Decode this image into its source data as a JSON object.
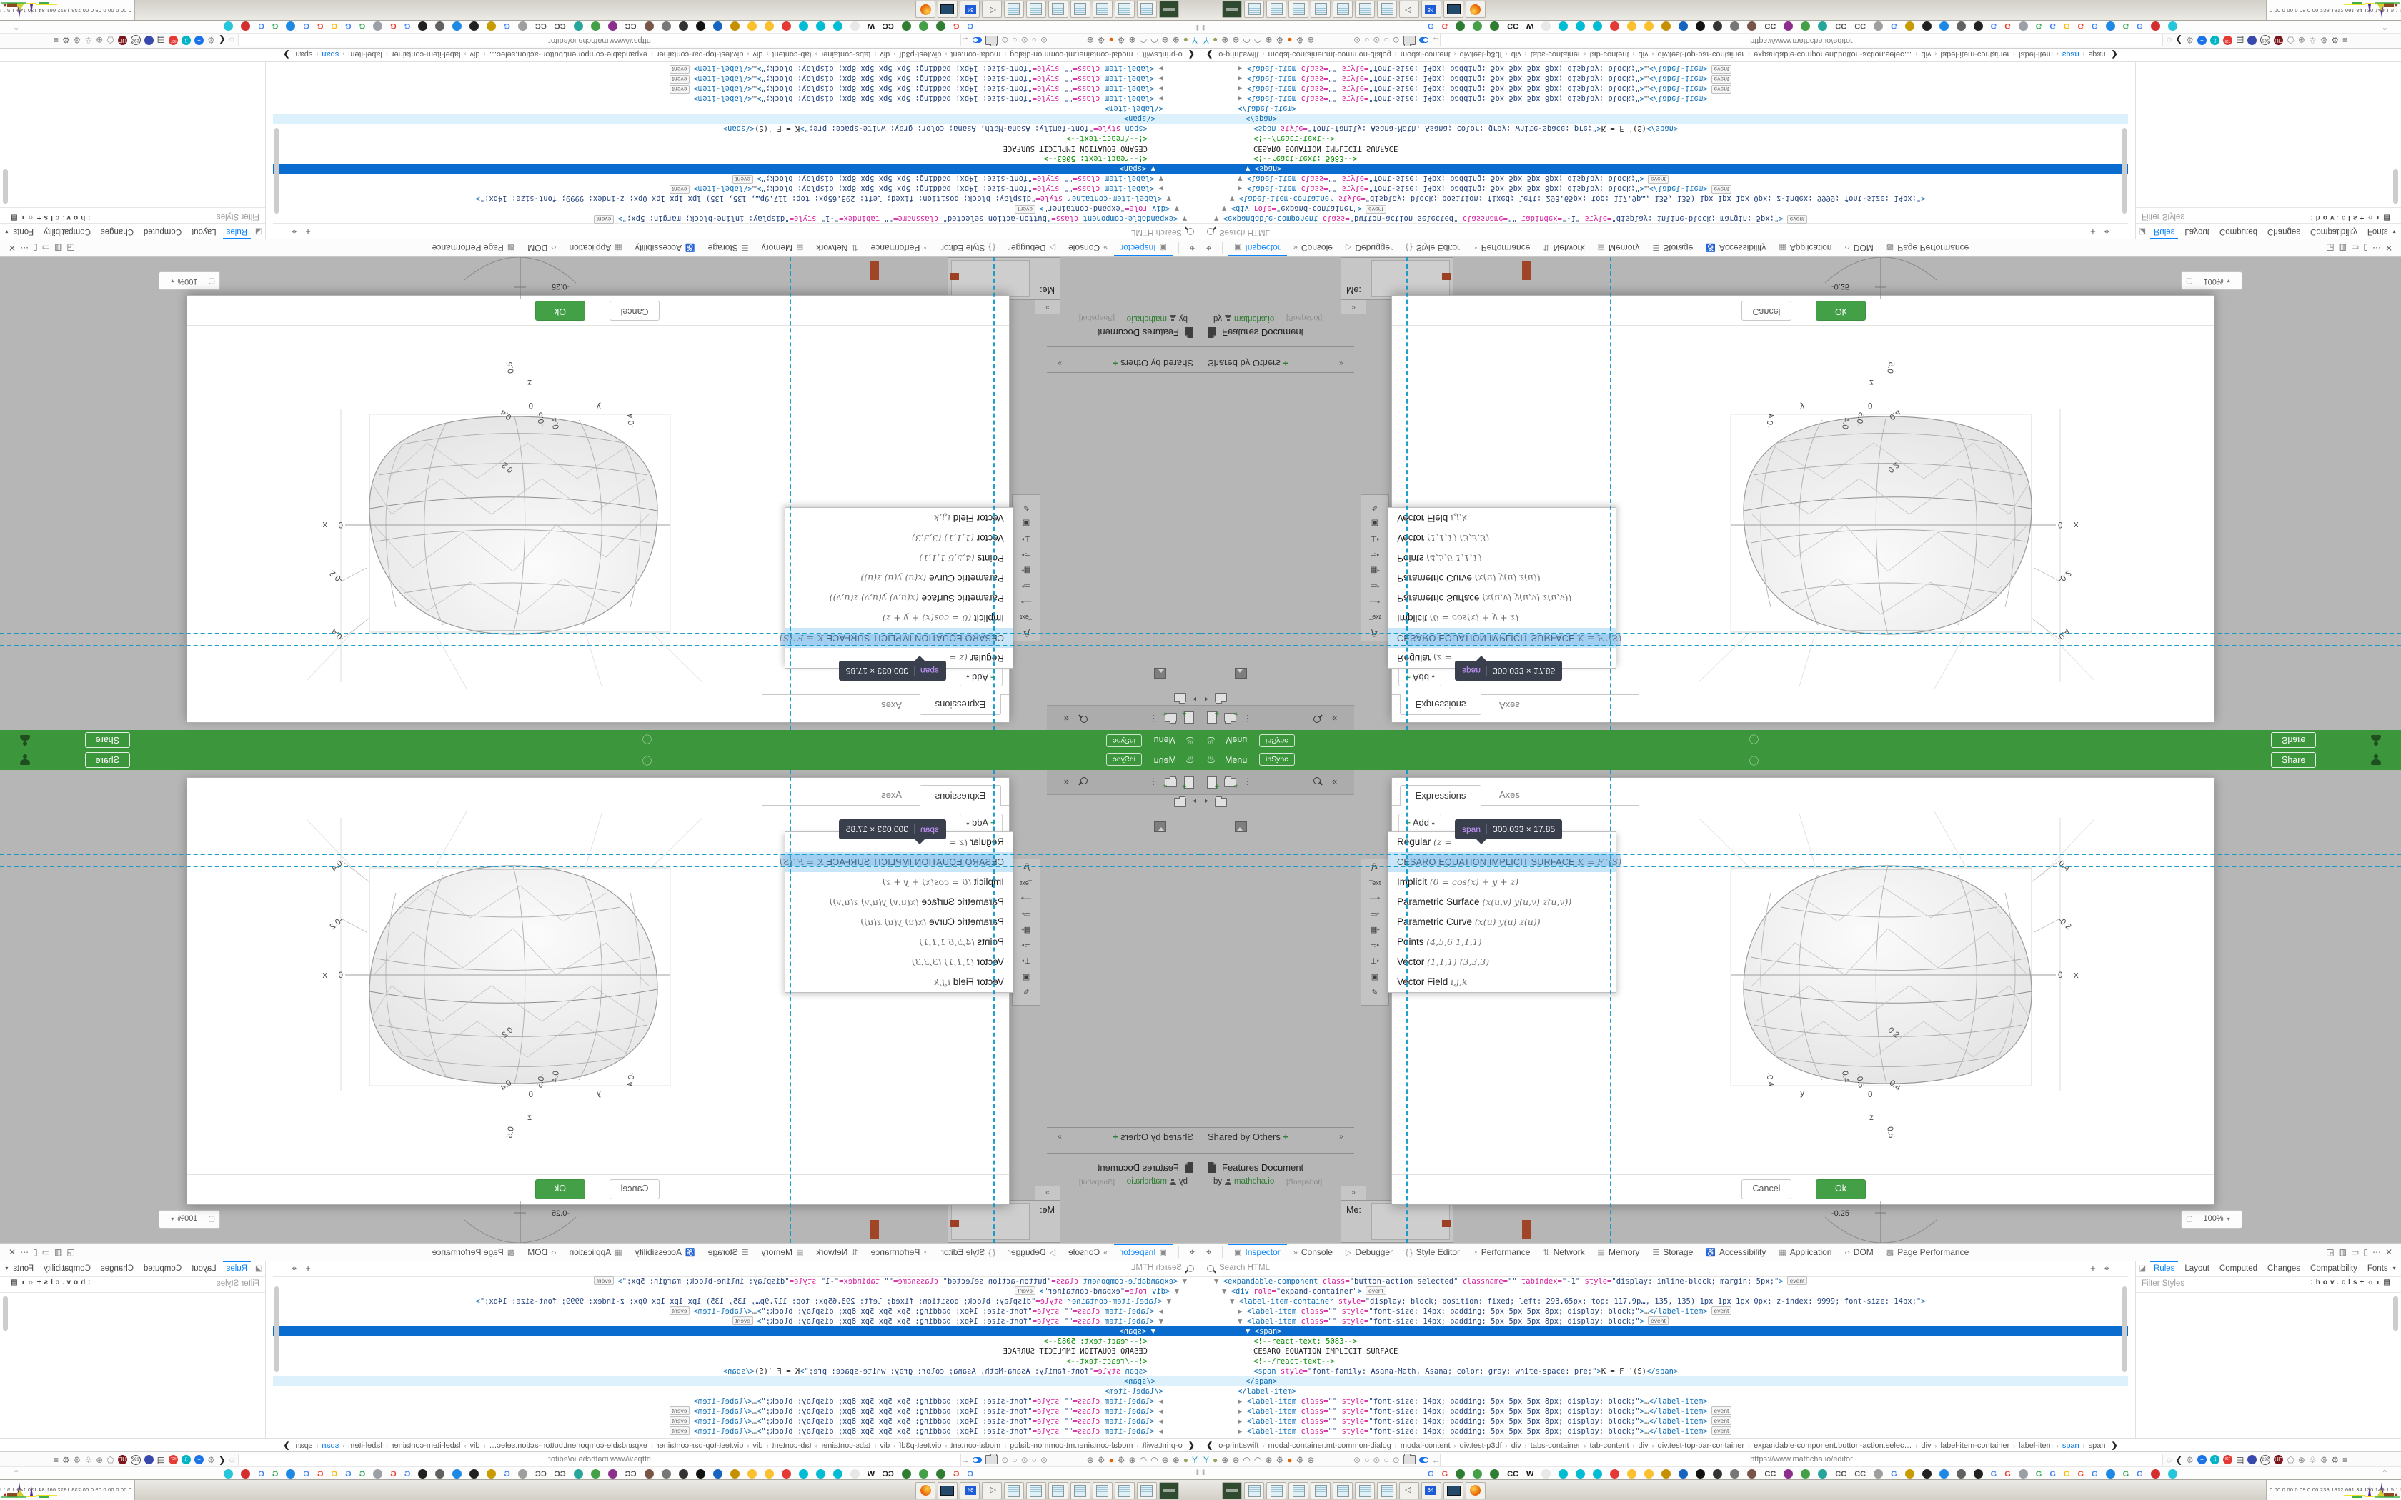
{
  "colors": {
    "accent_green": "#3c973c",
    "ok_green": "#43a047",
    "select_blue": "#0a6cce",
    "overlay_teal": "#0896c8",
    "link_green": "#2e7d32"
  },
  "navbar": {
    "logo_icon": "cup-icon",
    "menu": "Menu",
    "sync_badge": "inSync",
    "info_icon": "i",
    "share": "Share"
  },
  "sidebar": {
    "shared_header": "Shared by Others",
    "shared_plus": "+",
    "collapse": "»",
    "doc_title": "Features Document",
    "doc_by": "by",
    "doc_author": "mathcha.io",
    "doc_badge": "[Snapshot]",
    "me_label": "Me:"
  },
  "tool_strip": [
    "fx",
    "Text",
    "—",
    "▭",
    "▦",
    "⇨",
    "⊥",
    "▣",
    "✎"
  ],
  "modal": {
    "tab_active": "Expressions",
    "tab_inactive": "Axes",
    "add_plus": "+",
    "add_label": "Add",
    "add_caret": "▾",
    "menu_items": [
      {
        "name": "Regular",
        "formula": "(z ="
      },
      {
        "name": "CESARO EQUATION IMPLICIT SURFACE",
        "formula": "K = F ′(S)",
        "selected": true
      },
      {
        "name": "Implicit",
        "formula": "(0 = cos(x) + y + z)"
      },
      {
        "name": "Parametric Surface",
        "formula": "(x(u,v) y(u,v) z(u,v))"
      },
      {
        "name": "Parametric Curve",
        "formula": "(x(u) y(u) z(u))"
      },
      {
        "name": "Points",
        "formula": "(4,5,6 1,1,1)"
      },
      {
        "name": "Vector",
        "formula": "(1,1,1) (3,3,3)"
      },
      {
        "name": "Vector Field",
        "formula": "i,j,k"
      }
    ],
    "cancel": "Cancel",
    "ok": "Ok"
  },
  "tooltip": {
    "tag": "span",
    "dims": "300.033 × 17.85"
  },
  "plot": {
    "x_ticks": [
      "-0.4",
      "-0.2",
      "0"
    ],
    "x_label": "x",
    "y_ticks": [
      "-0.4",
      "0.4"
    ],
    "y_label": "y",
    "z_ticks": [
      "-0.5",
      "0",
      "0.5",
      "0.2",
      "0.4"
    ],
    "z_label": "z"
  },
  "page_fragment": {
    "tick": "-0.25",
    "zoom_level": "100%",
    "zoom_caret": "▾",
    "fullscreen_icon": "▢"
  },
  "devtools": {
    "tabs": [
      {
        "icon": "▣",
        "label": "Inspector",
        "on": true
      },
      {
        "icon": "»",
        "label": "Console"
      },
      {
        "icon": "▷",
        "label": "Debugger"
      },
      {
        "icon": "{ }",
        "label": "Style Editor"
      },
      {
        "icon": "◔",
        "label": "Performance"
      },
      {
        "icon": "⇅",
        "label": "Network"
      },
      {
        "icon": "▤",
        "label": "Memory"
      },
      {
        "icon": "☰",
        "label": "Storage"
      },
      {
        "icon": "♿",
        "label": "Accessibility"
      },
      {
        "icon": "▦",
        "label": "Application"
      },
      {
        "icon": "‹›",
        "label": "DOM"
      },
      {
        "icon": "▩",
        "label": "Page Performance"
      }
    ],
    "right_icons": [
      "◲",
      "▥",
      "▭",
      "▯",
      "⋯",
      "✕"
    ],
    "pick_icon": "⌖",
    "search_placeholder": "Search HTML",
    "row2_icons": [
      "+",
      "⌖"
    ],
    "html_lines": [
      {
        "i": 1,
        "tok": [
          [
            "a",
            "▼ "
          ],
          [
            "t",
            "<expandable-component"
          ],
          [
            "n",
            " class="
          ],
          [
            "q",
            "\"button-action selected\""
          ],
          [
            "n",
            " classname="
          ],
          [
            "q",
            "\"\""
          ],
          [
            "n",
            " tabindex="
          ],
          [
            "q",
            "\"-1\""
          ],
          [
            "n",
            " style="
          ],
          [
            "q",
            "\"display: inline-block; margin: 5px;\""
          ],
          [
            "t",
            ">"
          ],
          [
            "e",
            "event"
          ]
        ]
      },
      {
        "i": 2,
        "tok": [
          [
            "a",
            "▼ "
          ],
          [
            "t",
            "<div"
          ],
          [
            "n",
            " role="
          ],
          [
            "q",
            "\"expand-container\""
          ],
          [
            "t",
            ">"
          ],
          [
            "e",
            "event"
          ]
        ]
      },
      {
        "i": 3,
        "tok": [
          [
            "a",
            "▼ "
          ],
          [
            "t",
            "<label-item-container"
          ],
          [
            "n",
            " style="
          ],
          [
            "q",
            "\"display: block; position: fixed; left: 293.65px; top: 117.9p…, 135, 135) 1px 1px 1px 0px; z-index: 9999; font-size: 14px;\""
          ],
          [
            "t",
            ">"
          ]
        ]
      },
      {
        "i": 4,
        "tok": [
          [
            "a",
            "▶ "
          ],
          [
            "t",
            "<label-item"
          ],
          [
            "n",
            " class="
          ],
          [
            "q",
            "\"\""
          ],
          [
            "n",
            " style="
          ],
          [
            "q",
            "\"font-size: 14px; padding: 5px 5px 5px 8px; display: block;\""
          ],
          [
            "t",
            ">"
          ],
          [
            "d",
            "…"
          ],
          [
            "t",
            "</label-item>"
          ],
          [
            "e",
            "event"
          ]
        ]
      },
      {
        "i": 4,
        "tok": [
          [
            "a",
            "▼ "
          ],
          [
            "t",
            "<label-item"
          ],
          [
            "n",
            " class="
          ],
          [
            "q",
            "\"\""
          ],
          [
            "n",
            " style="
          ],
          [
            "q",
            "\"font-size: 14px; padding: 5px 5px 5px 8px; display: block;\""
          ],
          [
            "t",
            ">"
          ],
          [
            "e",
            "event"
          ]
        ]
      },
      {
        "i": 5,
        "sel": true,
        "tok": [
          [
            "a",
            "▼ "
          ],
          [
            "t",
            "<span>"
          ]
        ]
      },
      {
        "i": 6,
        "tok": [
          [
            "c",
            "<!--react-text: 5083-->"
          ]
        ]
      },
      {
        "i": 6,
        "tok": [
          [
            "x",
            "CESARO EQUATION IMPLICIT SURFACE"
          ]
        ]
      },
      {
        "i": 6,
        "tok": [
          [
            "c",
            "<!--/react-text-->"
          ]
        ]
      },
      {
        "i": 6,
        "tok": [
          [
            "t",
            "<span"
          ],
          [
            "n",
            " style="
          ],
          [
            "q",
            "\"font-family: Asana-Math, Asana; color: gray; white-space: pre;\""
          ],
          [
            "t",
            ">"
          ],
          [
            "x",
            "K = F ′(S)"
          ],
          [
            "t",
            "</span>"
          ]
        ]
      },
      {
        "i": 5,
        "hov": true,
        "tok": [
          [
            "t",
            "</span>"
          ]
        ]
      },
      {
        "i": 4,
        "tok": [
          [
            "t",
            "</label-item>"
          ]
        ]
      },
      {
        "i": 4,
        "tok": [
          [
            "a",
            "▶ "
          ],
          [
            "t",
            "<label-item"
          ],
          [
            "n",
            " class="
          ],
          [
            "q",
            "\"\""
          ],
          [
            "n",
            " style="
          ],
          [
            "q",
            "\"font-size: 14px; padding: 5px 5px 5px 8px; display: block;\""
          ],
          [
            "t",
            ">"
          ],
          [
            "d",
            "…"
          ],
          [
            "t",
            "</label-item>"
          ]
        ]
      },
      {
        "i": 4,
        "tok": [
          [
            "a",
            "▶ "
          ],
          [
            "t",
            "<label-item"
          ],
          [
            "n",
            " class="
          ],
          [
            "q",
            "\"\""
          ],
          [
            "n",
            " style="
          ],
          [
            "q",
            "\"font-size: 14px; padding: 5px 5px 5px 8px; display: block;\""
          ],
          [
            "t",
            ">"
          ],
          [
            "d",
            "…"
          ],
          [
            "t",
            "</label-item>"
          ],
          [
            "e",
            "event"
          ]
        ]
      },
      {
        "i": 4,
        "tok": [
          [
            "a",
            "▶ "
          ],
          [
            "t",
            "<label-item"
          ],
          [
            "n",
            " class="
          ],
          [
            "q",
            "\"\""
          ],
          [
            "n",
            " style="
          ],
          [
            "q",
            "\"font-size: 14px; padding: 5px 5px 5px 8px; display: block;\""
          ],
          [
            "t",
            ">"
          ],
          [
            "d",
            "…"
          ],
          [
            "t",
            "</label-item>"
          ],
          [
            "e",
            "event"
          ]
        ]
      },
      {
        "i": 4,
        "tok": [
          [
            "a",
            "▶ "
          ],
          [
            "t",
            "<label-item"
          ],
          [
            "n",
            " class="
          ],
          [
            "q",
            "\"\""
          ],
          [
            "n",
            " style="
          ],
          [
            "q",
            "\"font-size: 14px; padding: 5px 5px 5px 8px; display: block;\""
          ],
          [
            "t",
            ">"
          ],
          [
            "d",
            "…"
          ],
          [
            "t",
            "</label-item>"
          ],
          [
            "e",
            "event"
          ]
        ]
      }
    ],
    "rules_tabs": [
      {
        "label": "Rules",
        "on": true
      },
      {
        "label": "Layout"
      },
      {
        "label": "Computed"
      },
      {
        "label": "Changes"
      },
      {
        "label": "Compatibility"
      },
      {
        "label": "Fonts"
      }
    ],
    "rules_side_icon": "◪",
    "rules_caret": "▾",
    "filter_placeholder": "Filter Styles",
    "filter_icons": [
      ":hov",
      ".cls",
      "+",
      "☼",
      "◐",
      "▤"
    ],
    "breadcrumbs": [
      "o-print.swift",
      "modal-container.mt-common-dialog",
      "modal-content",
      "div.test-p3df",
      "div",
      "tabs-container",
      "tab-content",
      "div",
      "div.test-top-bar-container",
      "expandable-component.button-action.selec…",
      "div",
      "label-item-container",
      "label-item",
      "span",
      "span"
    ],
    "breadcrumb_selected_index": 13,
    "crumb_left": "❮",
    "crumb_right": "❯"
  },
  "browser": {
    "url": "https://www.mathcha.io/editor",
    "nav_left_icons": [
      {
        "g": "Y",
        "c": "#18a0c4"
      },
      {
        "g": "●",
        "c": "#93a25c"
      },
      {
        "g": "⊕",
        "c": "#777"
      },
      {
        "g": "⊕",
        "c": "#777"
      },
      {
        "g": "◠",
        "c": "#777"
      },
      {
        "g": "◠",
        "c": "#777"
      },
      {
        "g": "⊕",
        "c": "#777"
      },
      {
        "g": "⚙",
        "c": "#777"
      },
      {
        "g": "●",
        "c": "#e66000"
      },
      {
        "g": "⚙",
        "c": "#777"
      },
      {
        "g": "⊕",
        "c": "#777"
      }
    ],
    "nav_mid_icons": [
      {
        "g": "⊙",
        "c": "#999"
      },
      {
        "g": "○",
        "c": "#999"
      },
      {
        "g": "⊙",
        "c": "#999"
      },
      {
        "g": "○",
        "c": "#999"
      },
      {
        "g": "⊙",
        "c": "#999"
      },
      {
        "t": "folder"
      },
      {
        "t": "pill"
      },
      {
        "g": "←",
        "c": "#8a8a8a"
      },
      {
        "g": "⬠",
        "c": "#999"
      },
      {
        "t": "lock"
      }
    ],
    "nav_right_icons": [
      {
        "g": "◌",
        "c": "#888"
      },
      {
        "g": "❮",
        "c": "#222"
      },
      {
        "g": "⚙",
        "c": "#999"
      },
      {
        "t": "dot",
        "c": "#1a73e8",
        "tx": "+"
      },
      {
        "t": "dot",
        "c": "#00b3c6",
        "tx": "⇩"
      },
      {
        "t": "dot",
        "c": "#e53935",
        "tx": "ICF"
      },
      {
        "g": "▤",
        "c": "#333"
      },
      {
        "t": "dot",
        "c": "#3949ab",
        "tx": ""
      },
      {
        "t": "ring",
        "tx": "292"
      },
      {
        "t": "dot",
        "c": "#7b1518",
        "tx": "UD"
      },
      {
        "g": "⬠",
        "c": "#999"
      },
      {
        "g": "⊕",
        "c": "#888"
      },
      {
        "g": "♧",
        "c": "#777"
      },
      {
        "g": "⚙",
        "c": "#888"
      },
      {
        "g": "⚙",
        "c": "#666"
      },
      {
        "g": "≡",
        "c": "#444"
      }
    ],
    "bookmarks": [
      {
        "t": "txt",
        "tx": "G",
        "c": "#4285f4"
      },
      {
        "t": "txt",
        "tx": "G",
        "c": "#ea4335"
      },
      {
        "t": "dot",
        "c": "#2e7d32"
      },
      {
        "t": "dot",
        "c": "#43a047"
      },
      {
        "t": "dot",
        "c": "#2e7d32"
      },
      {
        "t": "txt",
        "tx": "CC",
        "c": "#222"
      },
      {
        "t": "txt",
        "tx": "W",
        "c": "#111"
      },
      {
        "t": "dot",
        "c": "#e8e8e8"
      },
      {
        "t": "dot",
        "c": "#00bcd4"
      },
      {
        "t": "dot",
        "c": "#00bcd4"
      },
      {
        "t": "dot",
        "c": "#00bcd4"
      },
      {
        "t": "dot",
        "c": "#e53935"
      },
      {
        "t": "dot",
        "c": "#fbc02d"
      },
      {
        "t": "dot",
        "c": "#fbc02d"
      },
      {
        "t": "dot",
        "c": "#c49000"
      },
      {
        "t": "dot",
        "c": "#1565c0"
      },
      {
        "t": "dot",
        "c": "#111"
      },
      {
        "t": "dot",
        "c": "#333"
      },
      {
        "t": "dot",
        "c": "#777"
      },
      {
        "t": "dot",
        "c": "#795548"
      },
      {
        "t": "txt",
        "tx": "CC",
        "c": "#444"
      },
      {
        "t": "dot",
        "c": "#8d2e8d"
      },
      {
        "t": "dot",
        "c": "#43a047"
      },
      {
        "t": "dot",
        "c": "#26a69a"
      },
      {
        "t": "txt",
        "tx": "CC",
        "c": "#555"
      },
      {
        "t": "txt",
        "tx": "CC",
        "c": "#555"
      },
      {
        "t": "dot",
        "c": "#9e9e9e"
      },
      {
        "t": "txt",
        "tx": "G",
        "c": "#4285f4"
      },
      {
        "t": "dot",
        "c": "#c89b00"
      },
      {
        "t": "dot",
        "c": "#212121"
      },
      {
        "t": "dot",
        "c": "#1e88e5"
      },
      {
        "t": "dot",
        "c": "#616161"
      },
      {
        "t": "dot",
        "c": "#212121"
      },
      {
        "t": "txt",
        "tx": "G",
        "c": "#4285f4"
      },
      {
        "t": "txt",
        "tx": "G",
        "c": "#ea4335"
      },
      {
        "t": "dot",
        "c": "#9aa0a6"
      },
      {
        "t": "txt",
        "tx": "G",
        "c": "#34a853"
      },
      {
        "t": "txt",
        "tx": "G",
        "c": "#4285f4"
      },
      {
        "t": "txt",
        "tx": "G",
        "c": "#fbbc05"
      },
      {
        "t": "txt",
        "tx": "G",
        "c": "#ea4335"
      },
      {
        "t": "txt",
        "tx": "G",
        "c": "#4285f4"
      },
      {
        "t": "dot",
        "c": "#1e88e5"
      },
      {
        "t": "txt",
        "tx": "G",
        "c": "#34a853"
      },
      {
        "t": "txt",
        "tx": "G",
        "c": "#4285f4"
      },
      {
        "t": "dot",
        "c": "#d32f2f"
      },
      {
        "t": "dot",
        "c": "#26c6da"
      }
    ],
    "bookmarks_overflow": "⌃",
    "bookmarks_left": "‖"
  },
  "taskbar": {
    "icons": [
      "app",
      "note",
      "note",
      "note",
      "note",
      "note",
      "note",
      "note",
      "spk",
      "flop",
      "mon",
      "ff"
    ],
    "tray_text": "0.00 0.00 0.09 0.00  238 1812 661  34 130 149  1.5 1.5  34 30  2419 3682"
  }
}
